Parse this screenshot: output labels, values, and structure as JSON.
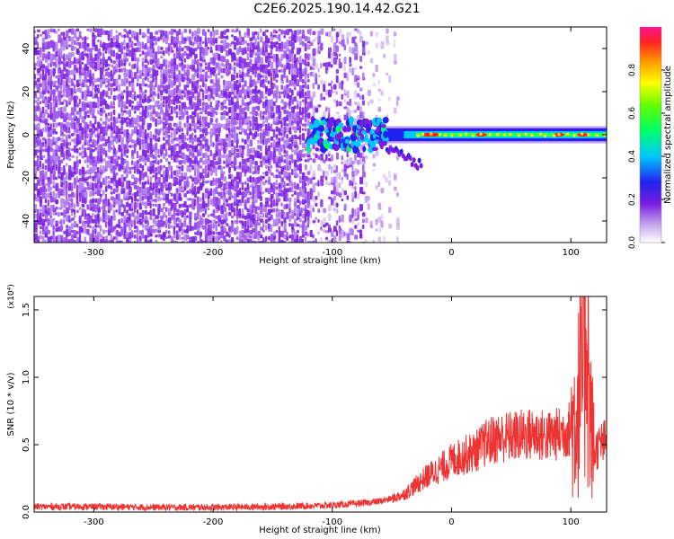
{
  "title": "C2E6.2025.190.14.42.G21",
  "chart_data": [
    {
      "type": "heatmap",
      "xlabel": "Height of straight line (km)",
      "ylabel": "Frequency (Hz)",
      "xlim": [
        -350,
        130
      ],
      "ylim": [
        -50,
        50
      ],
      "xticks": [
        -300,
        -200,
        -100,
        0,
        100
      ],
      "yticks": [
        -40,
        -20,
        0,
        20,
        40
      ],
      "colorbar": {
        "label": "Normalized spectral amplitude",
        "range": [
          0,
          1
        ],
        "ticks": [
          0.0,
          0.2,
          0.4,
          0.6,
          0.8
        ],
        "tick_labels": [
          "0.0",
          "0.2",
          "0.4",
          "0.6",
          "0.8"
        ]
      },
      "features": {
        "noise_region_x": [
          -350,
          -65
        ],
        "signal_band_x": [
          -120,
          130
        ],
        "signal_band_center_hz": 0,
        "signal_band_halfwidth_hz": 3,
        "peak_points_x": [
          -20,
          -15,
          25,
          90,
          110
        ]
      }
    },
    {
      "type": "line",
      "xlabel": "Height of straight line (km)",
      "ylabel": "SNR (10 * v/v)",
      "scale_label": "(x10⁴)",
      "xlim": [
        -350,
        130
      ],
      "ylim": [
        0,
        1.6
      ],
      "xticks": [
        -300,
        -200,
        -100,
        0,
        100
      ],
      "yticks": [
        0.0,
        0.5,
        1.0,
        1.5
      ],
      "ytick_labels": [
        "0.0",
        "0.5",
        "1.0",
        "1.5"
      ],
      "color": "#ee3333",
      "series": [
        {
          "x": [
            -350,
            -300,
            -250,
            -200,
            -150,
            -100,
            -70,
            -60,
            -50,
            -40,
            -30,
            -20,
            -10,
            0,
            10,
            20,
            30,
            40,
            50,
            60,
            70,
            80,
            90,
            100,
            105,
            110,
            113,
            116,
            120,
            125,
            130
          ],
          "y": [
            0.04,
            0.04,
            0.035,
            0.035,
            0.04,
            0.05,
            0.07,
            0.08,
            0.1,
            0.13,
            0.2,
            0.27,
            0.32,
            0.38,
            0.42,
            0.45,
            0.52,
            0.55,
            0.56,
            0.57,
            0.58,
            0.56,
            0.58,
            0.62,
            0.75,
            1.0,
            1.58,
            0.7,
            0.45,
            0.5,
            0.52
          ]
        }
      ]
    }
  ]
}
